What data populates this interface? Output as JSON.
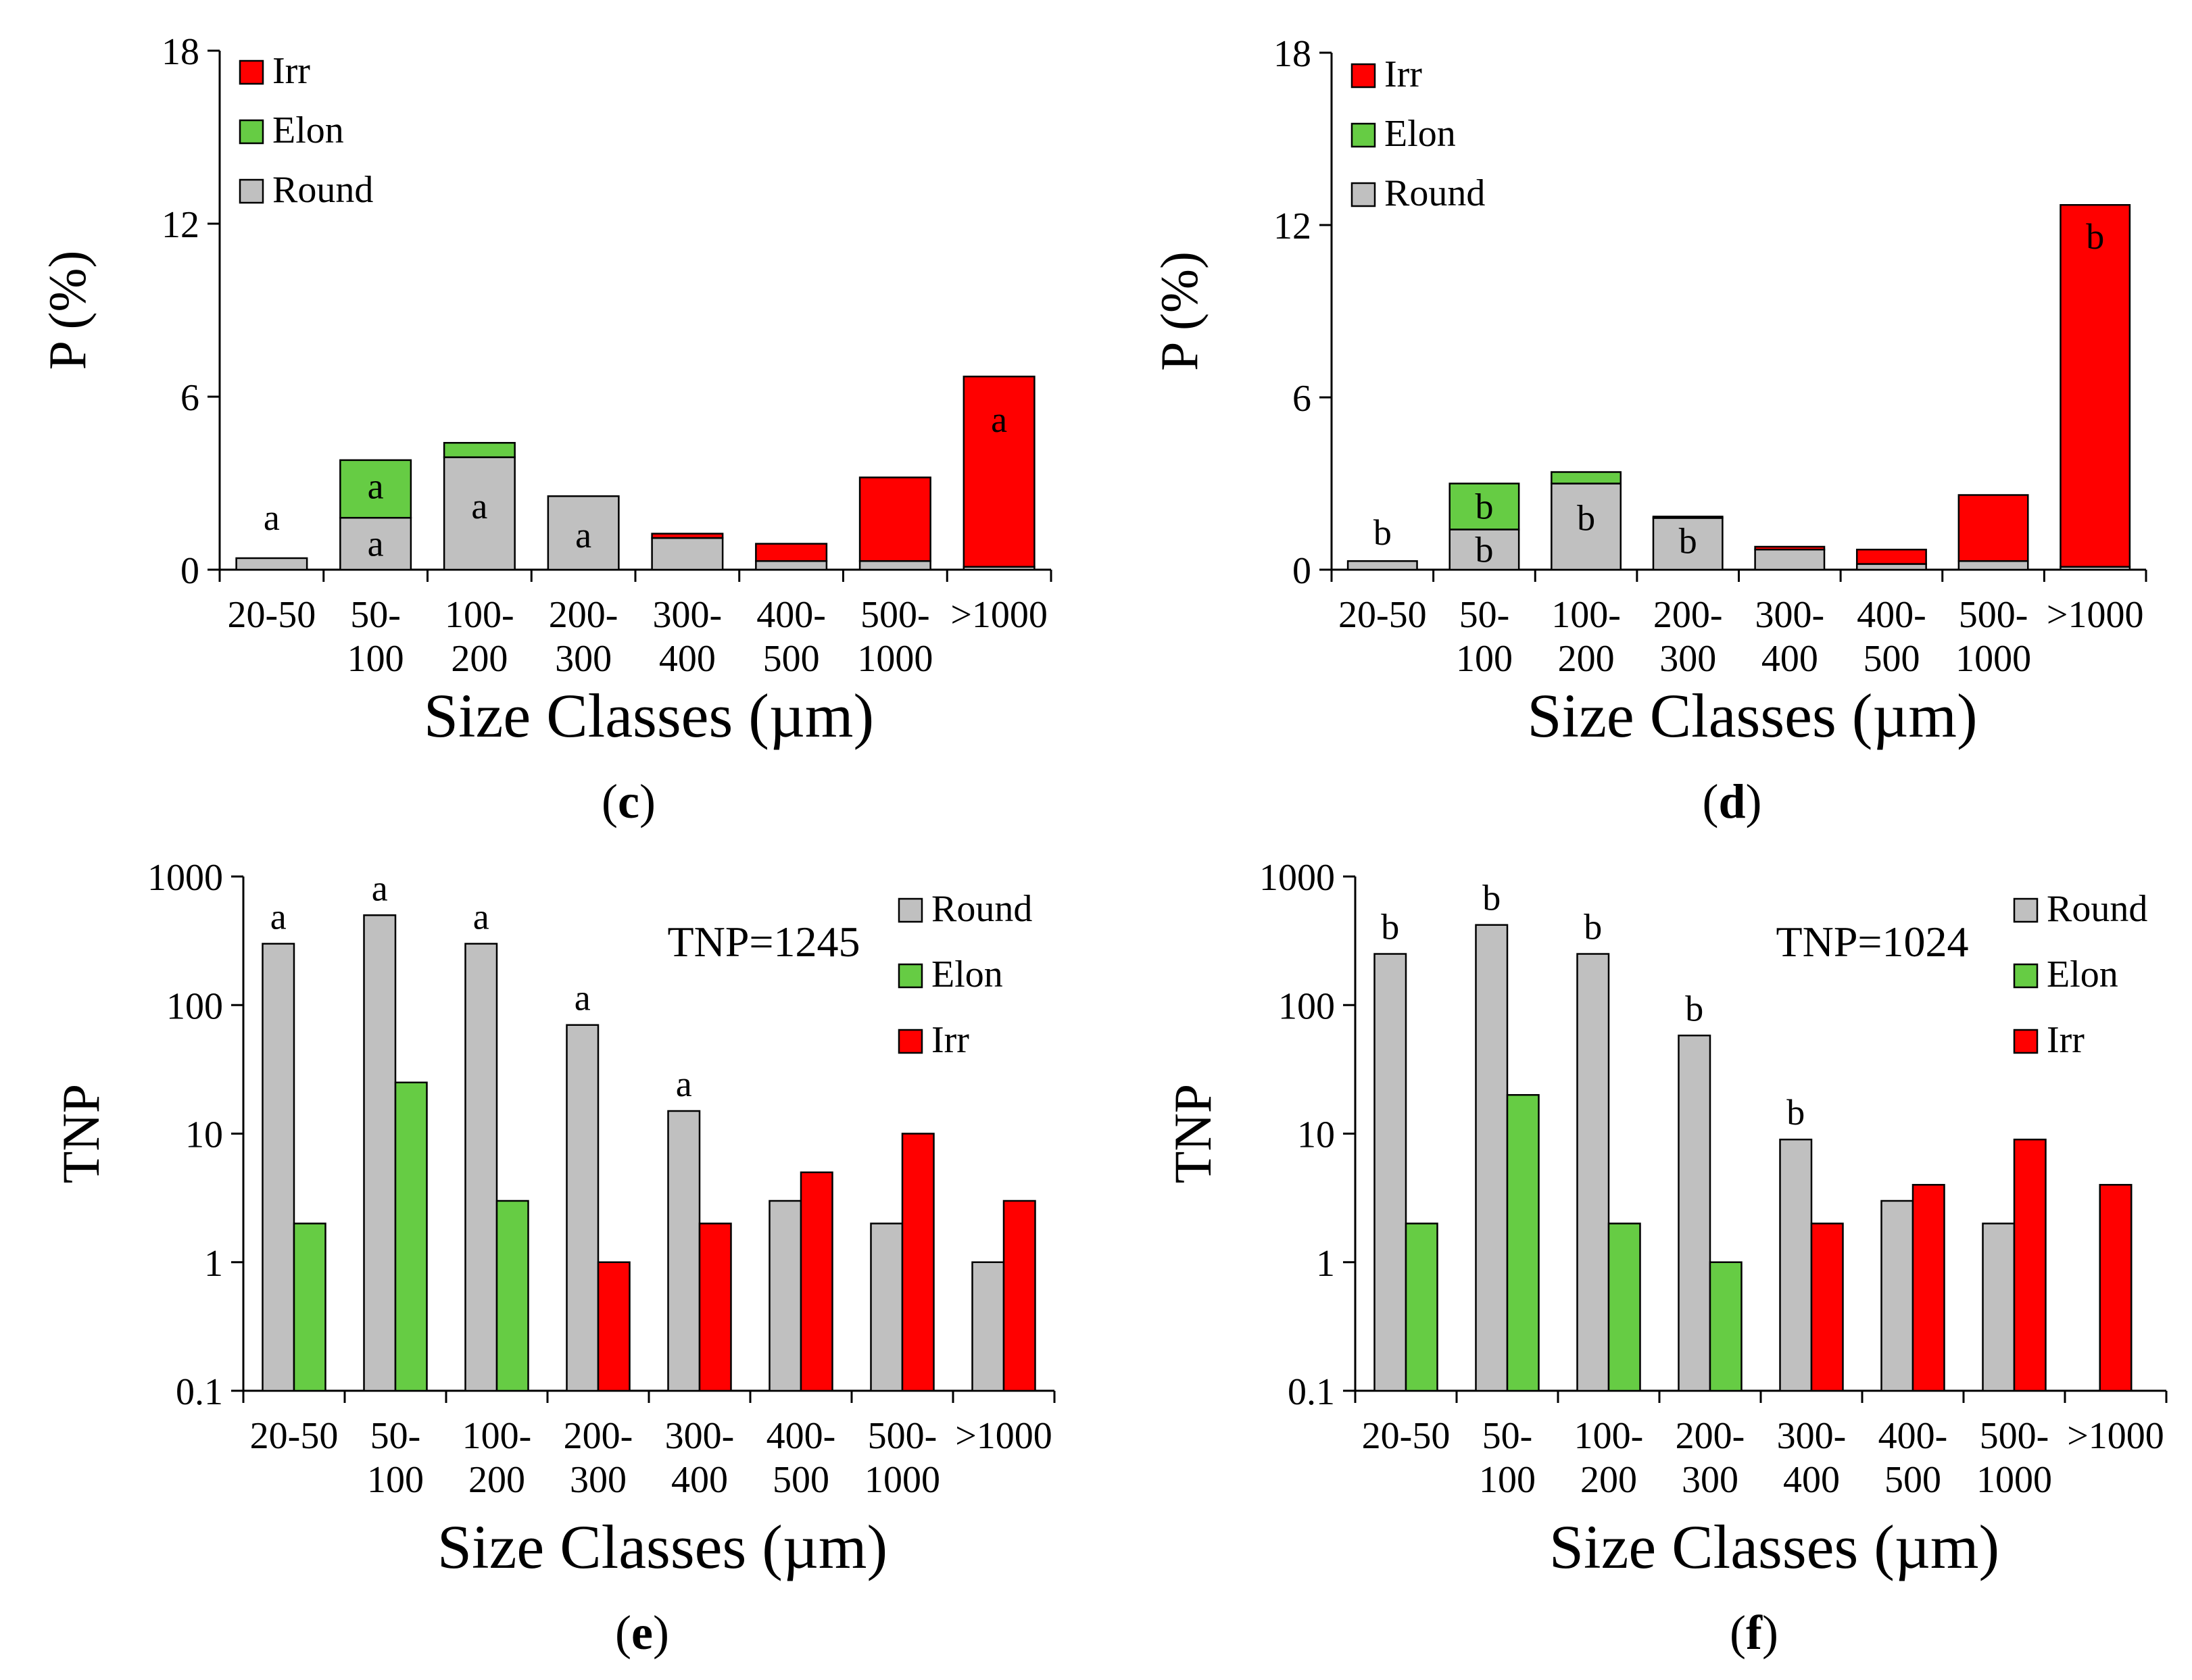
{
  "colors": {
    "Round": "#c0c0c0",
    "Elon": "#66cc44",
    "Irr": "#ff0000"
  },
  "chart_data": [
    {
      "id": "c",
      "panel_label": "(c)",
      "panel_letter": "c",
      "type": "stacked-bar",
      "ylabel": "P (%)",
      "xlabel": "Size Classes (µm)",
      "ylim": [
        0,
        18
      ],
      "yticks": [
        "0",
        "6",
        "12",
        "18"
      ],
      "categories": [
        [
          "20-50"
        ],
        [
          "50-",
          "100"
        ],
        [
          "100-",
          "200"
        ],
        [
          "200-",
          "300"
        ],
        [
          "300-",
          "400"
        ],
        [
          "400-",
          "500"
        ],
        [
          "500-",
          "1000"
        ],
        [
          ">1000"
        ]
      ],
      "series": [
        {
          "name": "Round",
          "values": [
            0.4,
            1.8,
            3.9,
            2.55,
            1.1,
            0.3,
            0.3,
            0.1
          ]
        },
        {
          "name": "Elon",
          "values": [
            0.0,
            2.0,
            0.5,
            0.0,
            0.0,
            0.0,
            0.0,
            0.0
          ]
        },
        {
          "name": "Irr",
          "values": [
            0.0,
            0.0,
            0.0,
            0.0,
            0.15,
            0.6,
            2.9,
            6.6
          ]
        }
      ],
      "legend": [
        "Irr",
        "Elon",
        "Round"
      ],
      "annotations": [
        {
          "cat": 0,
          "text": "a",
          "y": 1.8
        },
        {
          "cat": 1,
          "text": "a",
          "y": 0.9
        },
        {
          "cat": 1,
          "text": "a",
          "y": 2.9
        },
        {
          "cat": 2,
          "text": "a",
          "y": 2.2
        },
        {
          "cat": 3,
          "text": "a",
          "y": 1.2
        },
        {
          "cat": 7,
          "text": "a",
          "y": 5.2
        }
      ]
    },
    {
      "id": "d",
      "panel_label": "(d)",
      "panel_letter": "d",
      "type": "stacked-bar",
      "ylabel": "P (%)",
      "xlabel": "Size Classes (µm)",
      "ylim": [
        0,
        18
      ],
      "yticks": [
        "0",
        "6",
        "12",
        "18"
      ],
      "categories": [
        [
          "20-50"
        ],
        [
          "50-",
          "100"
        ],
        [
          "100-",
          "200"
        ],
        [
          "200-",
          "300"
        ],
        [
          "300-",
          "400"
        ],
        [
          "400-",
          "500"
        ],
        [
          "500-",
          "1000"
        ],
        [
          ">1000"
        ]
      ],
      "series": [
        {
          "name": "Round",
          "values": [
            0.3,
            1.4,
            3.0,
            1.8,
            0.7,
            0.2,
            0.3,
            0.1
          ]
        },
        {
          "name": "Elon",
          "values": [
            0.0,
            1.6,
            0.4,
            0.0,
            0.0,
            0.0,
            0.0,
            0.0
          ]
        },
        {
          "name": "Irr",
          "values": [
            0.0,
            0.0,
            0.0,
            0.05,
            0.1,
            0.5,
            2.3,
            12.6
          ]
        }
      ],
      "legend": [
        "Irr",
        "Elon",
        "Round"
      ],
      "annotations": [
        {
          "cat": 0,
          "text": "b",
          "y": 1.3
        },
        {
          "cat": 1,
          "text": "b",
          "y": 0.7
        },
        {
          "cat": 1,
          "text": "b",
          "y": 2.2
        },
        {
          "cat": 2,
          "text": "b",
          "y": 1.8
        },
        {
          "cat": 3,
          "text": "b",
          "y": 1.0
        },
        {
          "cat": 7,
          "text": "b",
          "y": 11.6
        }
      ]
    },
    {
      "id": "e",
      "panel_label": "(e)",
      "panel_letter": "e",
      "type": "bar-log",
      "ylabel": "TNP",
      "xlabel": "Size Classes (µm)",
      "ylim": [
        0.1,
        1000
      ],
      "yticks": [
        "0.1",
        "1",
        "10",
        "100",
        "1000"
      ],
      "categories": [
        [
          "20-50"
        ],
        [
          "50-",
          "100"
        ],
        [
          "100-",
          "200"
        ],
        [
          "200-",
          "300"
        ],
        [
          "300-",
          "400"
        ],
        [
          "400-",
          "500"
        ],
        [
          "500-",
          "1000"
        ],
        [
          ">1000"
        ]
      ],
      "series": [
        {
          "name": "Round",
          "values": [
            300,
            500,
            300,
            70,
            15,
            3,
            2,
            1
          ]
        },
        {
          "name": "Elon",
          "values": [
            2,
            25,
            3,
            null,
            null,
            null,
            null,
            null
          ]
        },
        {
          "name": "Irr",
          "values": [
            null,
            null,
            null,
            1,
            2,
            5,
            10,
            3
          ]
        }
      ],
      "legend": [
        "Round",
        "Elon",
        "Irr"
      ],
      "note": "TNP=1245",
      "letters": [
        "a",
        "a",
        "a",
        "a",
        "a",
        null,
        null,
        null
      ]
    },
    {
      "id": "f",
      "panel_label": "(f)",
      "panel_letter": "f",
      "type": "bar-log",
      "ylabel": "TNP",
      "xlabel": "Size Classes (µm)",
      "ylim": [
        0.1,
        1000
      ],
      "yticks": [
        "0.1",
        "1",
        "10",
        "100",
        "1000"
      ],
      "categories": [
        [
          "20-50"
        ],
        [
          "50-",
          "100"
        ],
        [
          "100-",
          "200"
        ],
        [
          "200-",
          "300"
        ],
        [
          "300-",
          "400"
        ],
        [
          "400-",
          "500"
        ],
        [
          "500-",
          "1000"
        ],
        [
          ">1000"
        ]
      ],
      "series": [
        {
          "name": "Round",
          "values": [
            250,
            420,
            250,
            58,
            9,
            3,
            2,
            null
          ]
        },
        {
          "name": "Elon",
          "values": [
            2,
            20,
            2,
            1,
            null,
            null,
            null,
            null
          ]
        },
        {
          "name": "Irr",
          "values": [
            null,
            null,
            null,
            null,
            2,
            4,
            9,
            4
          ]
        }
      ],
      "legend": [
        "Round",
        "Elon",
        "Irr"
      ],
      "note": "TNP=1024",
      "letters": [
        "b",
        "b",
        "b",
        "b",
        "b",
        null,
        null,
        null
      ]
    }
  ]
}
